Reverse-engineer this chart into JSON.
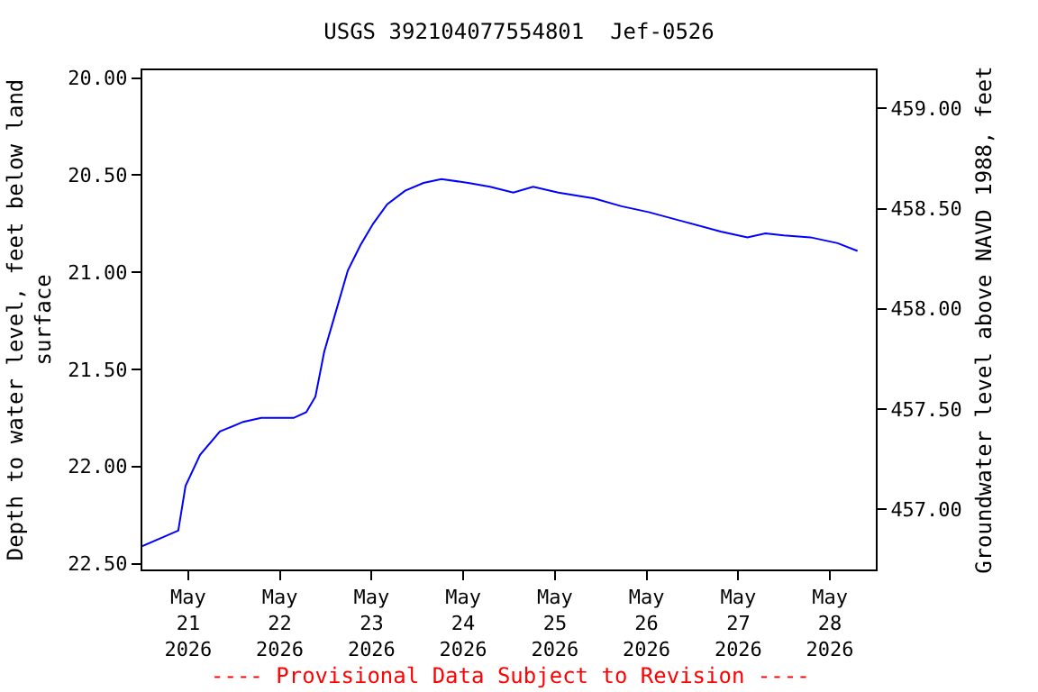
{
  "chart_data": {
    "type": "line",
    "title": "USGS 392104077554801  Jef-0526",
    "ylabel": "Depth to water level, feet below land\nsurface",
    "y2label": "Groundwater level above NAVD 1988, feet",
    "annotations": [
      "---- Provisional Data Subject to Revision ----"
    ],
    "x": [
      "2026-05-20T12:00",
      "2026-05-20T21:24",
      "2026-05-20T23:18",
      "2026-05-21T03:06",
      "2026-05-21T08:18",
      "2026-05-21T14:24",
      "2026-05-21T19:06",
      "2026-05-22T03:36",
      "2026-05-22T06:54",
      "2026-05-22T09:18",
      "2026-05-22T11:36",
      "2026-05-22T14:24",
      "2026-05-22T17:48",
      "2026-05-22T21:06",
      "2026-05-23T00:24",
      "2026-05-23T04:06",
      "2026-05-23T08:48",
      "2026-05-23T13:36",
      "2026-05-23T18:18",
      "2026-05-24T01:18",
      "2026-05-24T07:00",
      "2026-05-24T13:06",
      "2026-05-24T18:18",
      "2026-05-25T00:54",
      "2026-05-25T10:18",
      "2026-05-25T17:24",
      "2026-05-26T00:30",
      "2026-05-26T09:54",
      "2026-05-26T19:24",
      "2026-05-27T02:24",
      "2026-05-27T07:06",
      "2026-05-27T11:54",
      "2026-05-27T18:54",
      "2026-05-28T02:00",
      "2026-05-28T07:12"
    ],
    "series": [
      {
        "color": "#0000ff",
        "values": [
          22.41,
          22.33,
          22.1,
          21.94,
          21.82,
          21.77,
          21.75,
          21.75,
          21.72,
          21.64,
          21.41,
          21.22,
          20.99,
          20.86,
          20.75,
          20.65,
          20.58,
          20.54,
          20.52,
          20.54,
          20.56,
          20.59,
          20.56,
          20.59,
          20.62,
          20.66,
          20.69,
          20.74,
          20.79,
          20.82,
          20.8,
          20.81,
          20.82,
          20.85,
          20.89
        ]
      }
    ],
    "xlim": [
      "2026-05-20T12:00",
      "2026-05-28T12:00"
    ],
    "xticks": [
      {
        "value": "2026-05-21",
        "label": "May\n21\n2026"
      },
      {
        "value": "2026-05-22",
        "label": "May\n22\n2026"
      },
      {
        "value": "2026-05-23",
        "label": "May\n23\n2026"
      },
      {
        "value": "2026-05-24",
        "label": "May\n24\n2026"
      },
      {
        "value": "2026-05-25",
        "label": "May\n25\n2026"
      },
      {
        "value": "2026-05-26",
        "label": "May\n26\n2026"
      },
      {
        "value": "2026-05-27",
        "label": "May\n27\n2026"
      },
      {
        "value": "2026-05-28",
        "label": "May\n28\n2026"
      }
    ],
    "ylim": [
      22.53,
      19.96
    ],
    "yticks": [
      {
        "value": 20,
        "label": "20.00"
      },
      {
        "value": 20.5,
        "label": "20.50"
      },
      {
        "value": 21,
        "label": "21.00"
      },
      {
        "value": 21.5,
        "label": "21.50"
      },
      {
        "value": 22,
        "label": "22.00"
      },
      {
        "value": 22.5,
        "label": "22.50"
      }
    ],
    "y2lim": [
      456.7,
      459.19
    ],
    "y2ticks": [
      {
        "value": 457,
        "label": "457.00"
      },
      {
        "value": 457.5,
        "label": "457.50"
      },
      {
        "value": 458,
        "label": "458.00"
      },
      {
        "value": 458.5,
        "label": "458.50"
      },
      {
        "value": 459,
        "label": "459.00"
      }
    ],
    "grid": false,
    "marker": "none",
    "line_style": "solid"
  }
}
